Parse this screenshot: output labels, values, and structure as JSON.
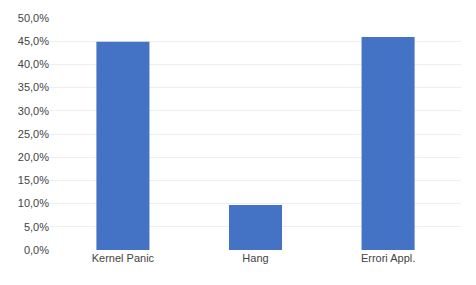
{
  "chart_data": {
    "type": "bar",
    "categories": [
      "Kernel Panic",
      "Hang",
      "Errori Appl."
    ],
    "values": [
      0.449,
      0.097,
      0.459
    ],
    "color": "#4472C4",
    "ylim": [
      0,
      0.5
    ],
    "yticks": [
      {
        "value": 0.0,
        "label": "0,0%"
      },
      {
        "value": 0.05,
        "label": "5,0%"
      },
      {
        "value": 0.1,
        "label": "10,0%"
      },
      {
        "value": 0.15,
        "label": "15,0%"
      },
      {
        "value": 0.2,
        "label": "20,0%"
      },
      {
        "value": 0.25,
        "label": "25,0%"
      },
      {
        "value": 0.3,
        "label": "30,0%"
      },
      {
        "value": 0.35,
        "label": "35,0%"
      },
      {
        "value": 0.4,
        "label": "40,0%"
      },
      {
        "value": 0.45,
        "label": "45,0%"
      },
      {
        "value": 0.5,
        "label": "50,0%"
      }
    ],
    "grid": true
  }
}
